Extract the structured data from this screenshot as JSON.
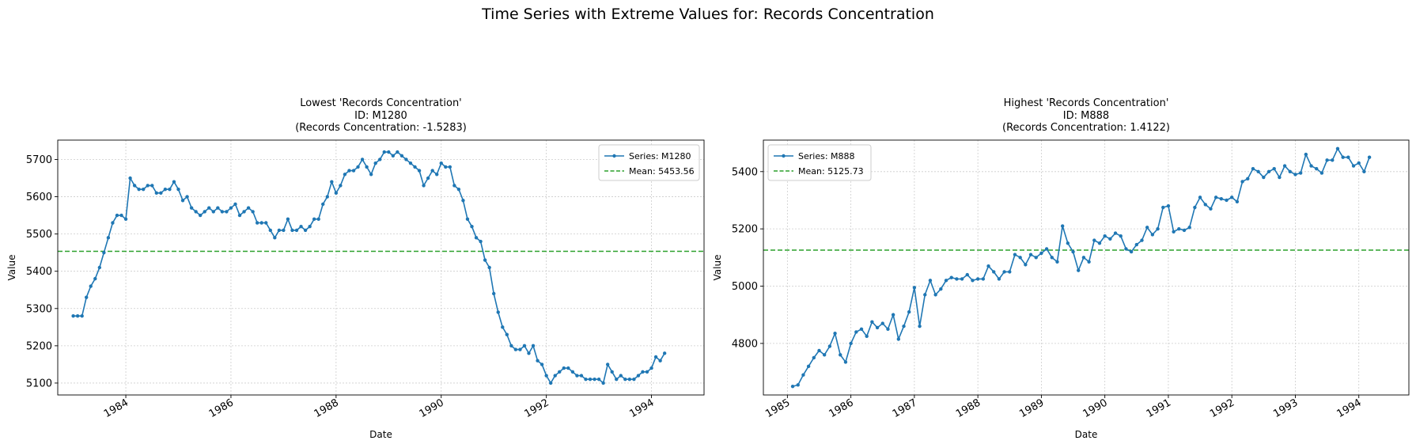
{
  "suptitle": "Time Series with Extreme Values for: Records Concentration",
  "chart_data": [
    {
      "type": "line",
      "title_lines": [
        "Lowest 'Records Concentration'",
        "ID: M1280",
        "(Records Concentration: -1.5283)"
      ],
      "xlabel": "Date",
      "ylabel": "Value",
      "xlim": [
        "1982-09-15",
        "1995-01-01"
      ],
      "ylim": [
        5068,
        5752
      ],
      "x_ticks": [
        "1984",
        "1986",
        "1988",
        "1990",
        "1992",
        "1994"
      ],
      "y_ticks": [
        5100,
        5200,
        5300,
        5400,
        5500,
        5600,
        5700
      ],
      "grid": true,
      "legend_position": "upper right",
      "mean": {
        "label": "Mean: 5453.56",
        "value": 5453.56,
        "color": "#2ca02c"
      },
      "series": [
        {
          "name": "Series: M1280",
          "color": "#1f77b4",
          "start": "1983-01",
          "frequency": "monthly",
          "values": [
            5280,
            5280,
            5280,
            5330,
            5360,
            5380,
            5410,
            5450,
            5490,
            5530,
            5550,
            5550,
            5540,
            5650,
            5630,
            5620,
            5620,
            5630,
            5630,
            5610,
            5610,
            5620,
            5620,
            5640,
            5620,
            5590,
            5600,
            5570,
            5560,
            5550,
            5560,
            5570,
            5560,
            5570,
            5560,
            5560,
            5570,
            5580,
            5550,
            5560,
            5570,
            5560,
            5530,
            5530,
            5530,
            5510,
            5490,
            5510,
            5510,
            5540,
            5510,
            5510,
            5520,
            5510,
            5520,
            5540,
            5540,
            5580,
            5600,
            5640,
            5610,
            5630,
            5660,
            5670,
            5670,
            5680,
            5700,
            5680,
            5660,
            5690,
            5700,
            5720,
            5720,
            5710,
            5720,
            5710,
            5700,
            5690,
            5680,
            5670,
            5630,
            5650,
            5670,
            5660,
            5690,
            5680,
            5680,
            5630,
            5620,
            5590,
            5540,
            5520,
            5490,
            5480,
            5430,
            5410,
            5340,
            5290,
            5250,
            5230,
            5200,
            5190,
            5190,
            5200,
            5180,
            5200,
            5160,
            5150,
            5120,
            5100,
            5120,
            5130,
            5140,
            5140,
            5130,
            5120,
            5120,
            5110,
            5110,
            5110,
            5110,
            5100,
            5150,
            5130,
            5110,
            5120,
            5110,
            5110,
            5110,
            5120,
            5130,
            5130,
            5140,
            5170,
            5160,
            5180
          ]
        }
      ]
    },
    {
      "type": "line",
      "title_lines": [
        "Highest 'Records Concentration'",
        "ID: M888",
        "(Records Concentration: 1.4122)"
      ],
      "xlabel": "Date",
      "ylabel": "Value",
      "xlim": [
        "1984-08-15",
        "1994-10-15"
      ],
      "ylim": [
        4620,
        5510
      ],
      "x_ticks": [
        "1985",
        "1986",
        "1987",
        "1988",
        "1989",
        "1990",
        "1991",
        "1992",
        "1993",
        "1994"
      ],
      "y_ticks": [
        4800,
        5000,
        5200,
        5400
      ],
      "grid": true,
      "legend_position": "upper left",
      "mean": {
        "label": "Mean: 5125.73",
        "value": 5125.73,
        "color": "#2ca02c"
      },
      "series": [
        {
          "name": "Series: M888",
          "color": "#1f77b4",
          "start": "1985-02",
          "frequency": "monthly",
          "values": [
            4650,
            4655,
            4690,
            4720,
            4750,
            4775,
            4760,
            4790,
            4835,
            4760,
            4735,
            4800,
            4840,
            4850,
            4825,
            4875,
            4855,
            4870,
            4850,
            4900,
            4815,
            4860,
            4910,
            4995,
            4860,
            4970,
            5020,
            4970,
            4990,
            5020,
            5030,
            5025,
            5025,
            5040,
            5020,
            5025,
            5025,
            5070,
            5050,
            5025,
            5050,
            5050,
            5110,
            5100,
            5075,
            5110,
            5100,
            5115,
            5130,
            5100,
            5085,
            5210,
            5150,
            5120,
            5055,
            5100,
            5085,
            5160,
            5150,
            5175,
            5165,
            5185,
            5175,
            5130,
            5120,
            5145,
            5160,
            5205,
            5180,
            5200,
            5275,
            5280,
            5190,
            5200,
            5195,
            5205,
            5275,
            5310,
            5285,
            5270,
            5310,
            5305,
            5300,
            5310,
            5295,
            5365,
            5375,
            5410,
            5400,
            5380,
            5400,
            5410,
            5380,
            5420,
            5400,
            5390,
            5395,
            5460,
            5420,
            5410,
            5395,
            5440,
            5440,
            5480,
            5450,
            5450,
            5420,
            5430,
            5400,
            5450
          ]
        }
      ]
    }
  ]
}
